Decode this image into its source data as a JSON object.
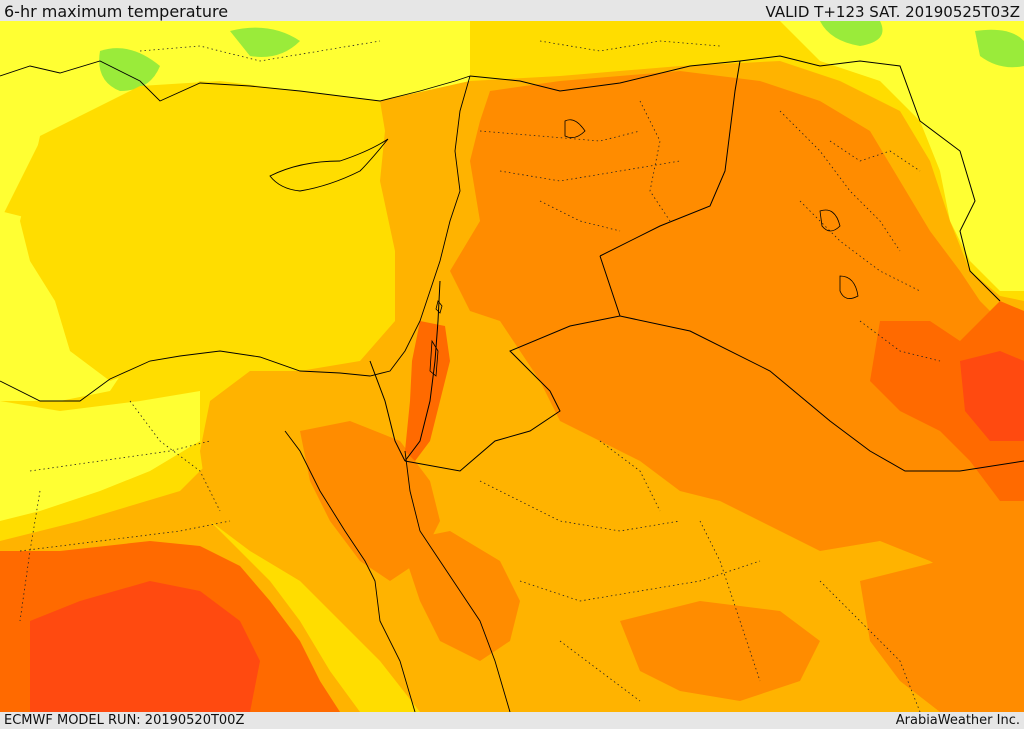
{
  "header": {
    "title": "6-hr maximum temperature",
    "valid": "VALID T+123 SAT. 20190525T03Z"
  },
  "footer": {
    "model_run": "ECMWF MODEL RUN: 20190520T00Z",
    "brand": "ArabiaWeather Inc."
  },
  "map": {
    "field": "temperature-shading",
    "colors": {
      "cool": "#ffff33",
      "mild": "#ffdd00",
      "warm": "#ffb300",
      "hot": "#ff8c00",
      "very_hot": "#ff6a00",
      "extreme": "#ff4a10",
      "green": "#9aeb3a",
      "sea_light": "#ffe000",
      "border": "#000000"
    }
  }
}
